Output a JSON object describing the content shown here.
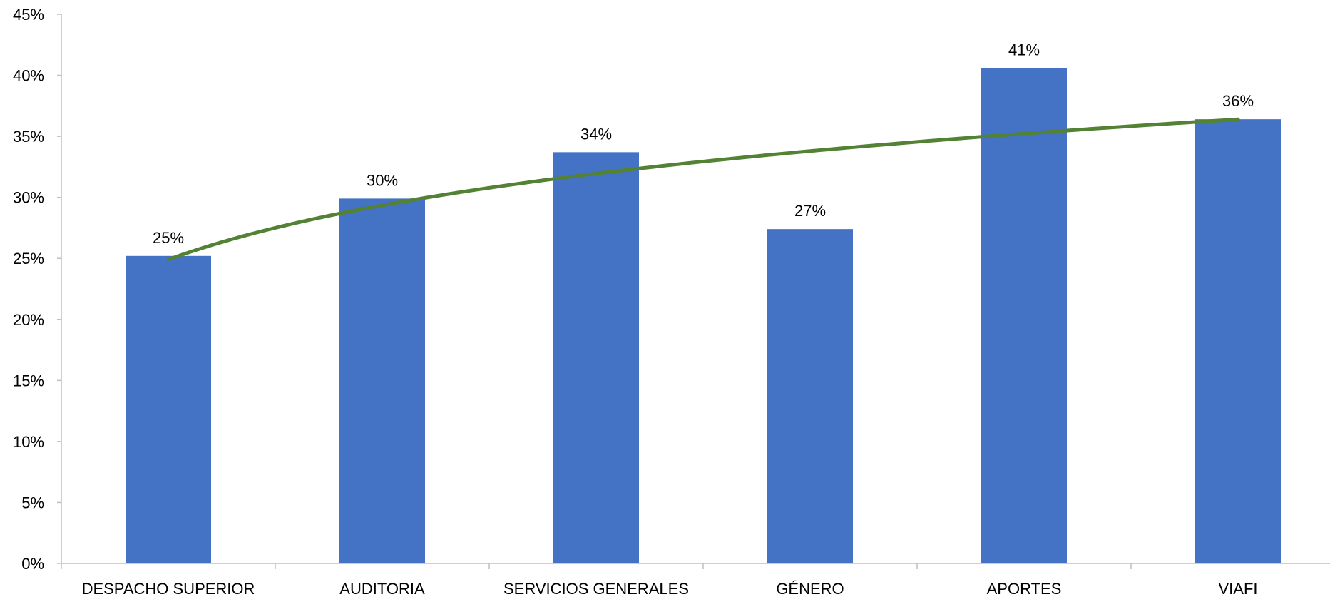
{
  "chart_data": {
    "type": "bar",
    "title": "",
    "xlabel": "",
    "ylabel": "",
    "categories": [
      "DESPACHO SUPERIOR",
      "AUDITORIA",
      "SERVICIOS GENERALES",
      "GÉNERO",
      "APORTES",
      "VIAFI"
    ],
    "series": [
      {
        "type": "bar",
        "values": [
          0.252,
          0.299,
          0.337,
          0.274,
          0.406,
          0.364
        ],
        "data_labels": [
          "25%",
          "30%",
          "34%",
          "27%",
          "41%",
          "36%"
        ],
        "color": "#4472C4"
      },
      {
        "type": "line",
        "trendline": "logarithmic",
        "values": [
          0.253,
          0.289,
          0.316,
          0.338,
          0.353,
          0.367
        ],
        "color": "#548235"
      }
    ],
    "ylim": [
      0,
      0.45
    ],
    "yticks": [
      0,
      0.05,
      0.1,
      0.15,
      0.2,
      0.25,
      0.3,
      0.35,
      0.4,
      0.45
    ],
    "ytick_labels": [
      "0%",
      "5%",
      "10%",
      "15%",
      "20%",
      "25%",
      "30%",
      "35%",
      "40%",
      "45%"
    ],
    "grid": false,
    "legend": "none"
  }
}
